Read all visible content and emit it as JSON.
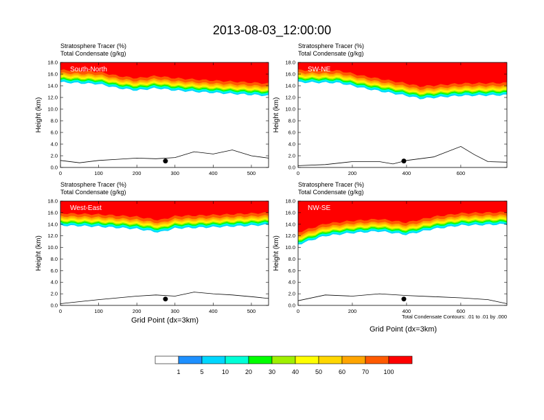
{
  "figure": {
    "title": "2013-08-03_12:00:00",
    "xlabel": "Grid Point (dx=3km)",
    "ylabel": "Height (km)",
    "contour_note": "Total Condensate Contours: .01 to .01 by .000"
  },
  "colorbar": {
    "colors": [
      "#ffffff",
      "#1e90ff",
      "#00d7ff",
      "#00ffd7",
      "#00ff00",
      "#a0f000",
      "#ffff00",
      "#ffd700",
      "#ffa500",
      "#ff5a00",
      "#ff0000"
    ],
    "labels": [
      "1",
      "5",
      "10",
      "20",
      "30",
      "40",
      "50",
      "60",
      "70",
      "100"
    ]
  },
  "chart_data": [
    {
      "type": "heatmap",
      "name": "South-North",
      "label1": "Stratosphere Tracer   (%)",
      "label2": "Total Condensate   (g/kg)",
      "xlim": [
        0,
        545
      ],
      "ylim": [
        0,
        18
      ],
      "xticks": [
        "0",
        "100",
        "200",
        "300",
        "400",
        "500"
      ],
      "xtick_values": [
        0,
        100,
        200,
        300,
        400,
        500
      ],
      "yticks": [
        "0.0",
        "2.0",
        "4.0",
        "6.0",
        "8.0",
        "10.0",
        "12.0",
        "14.0",
        "16.0",
        "18.0"
      ],
      "tropopause_km": [
        [
          0,
          14.6
        ],
        [
          100,
          14.3
        ],
        [
          150,
          13.6
        ],
        [
          200,
          13.2
        ],
        [
          250,
          13.6
        ],
        [
          300,
          13.2
        ],
        [
          400,
          12.8
        ],
        [
          545,
          12.3
        ]
      ],
      "terrain_km": [
        [
          0,
          1.2
        ],
        [
          50,
          0.8
        ],
        [
          100,
          1.2
        ],
        [
          150,
          1.4
        ],
        [
          200,
          1.6
        ],
        [
          250,
          1.5
        ],
        [
          300,
          1.7
        ],
        [
          350,
          2.7
        ],
        [
          400,
          2.3
        ],
        [
          450,
          3.0
        ],
        [
          500,
          2.0
        ],
        [
          545,
          1.6
        ]
      ],
      "marker": [
        275,
        1.1
      ]
    },
    {
      "type": "heatmap",
      "name": "SW-NE",
      "label1": "Stratosphere Tracer   (%)",
      "label2": "Total Condensate   (g/kg)",
      "xlim": [
        0,
        770
      ],
      "ylim": [
        0,
        18
      ],
      "xticks": [
        "0",
        "200",
        "400",
        "600"
      ],
      "xtick_values": [
        0,
        200,
        400,
        600
      ],
      "yticks": [
        "0.0",
        "2.0",
        "4.0",
        "6.0",
        "8.0",
        "10.0",
        "12.0",
        "14.0",
        "16.0",
        "18.0"
      ],
      "tropopause_km": [
        [
          0,
          14.6
        ],
        [
          150,
          14.5
        ],
        [
          250,
          13.5
        ],
        [
          400,
          12.3
        ],
        [
          450,
          11.8
        ],
        [
          600,
          12.3
        ],
        [
          770,
          12.4
        ]
      ],
      "terrain_km": [
        [
          0,
          0.3
        ],
        [
          100,
          0.5
        ],
        [
          200,
          1.0
        ],
        [
          300,
          1.0
        ],
        [
          350,
          0.6
        ],
        [
          400,
          1.2
        ],
        [
          500,
          1.8
        ],
        [
          600,
          3.6
        ],
        [
          650,
          2.2
        ],
        [
          700,
          1.0
        ],
        [
          770,
          0.9
        ]
      ],
      "marker": [
        390,
        1.1
      ]
    },
    {
      "type": "heatmap",
      "name": "West-East",
      "label1": "Stratosphere Tracer   (%)",
      "label2": "Total Condensate   (g/kg)",
      "xlim": [
        0,
        545
      ],
      "ylim": [
        0,
        18
      ],
      "xticks": [
        "0",
        "100",
        "200",
        "300",
        "400",
        "500"
      ],
      "xtick_values": [
        0,
        100,
        200,
        300,
        400,
        500
      ],
      "yticks": [
        "0.0",
        "2.0",
        "4.0",
        "6.0",
        "8.0",
        "10.0",
        "12.0",
        "14.0",
        "16.0",
        "18.0"
      ],
      "tropopause_km": [
        [
          0,
          13.8
        ],
        [
          100,
          13.6
        ],
        [
          200,
          13.2
        ],
        [
          260,
          12.6
        ],
        [
          300,
          13.3
        ],
        [
          400,
          13.5
        ],
        [
          545,
          13.9
        ]
      ],
      "terrain_km": [
        [
          0,
          0.3
        ],
        [
          100,
          1.0
        ],
        [
          200,
          1.6
        ],
        [
          250,
          1.8
        ],
        [
          300,
          1.6
        ],
        [
          350,
          2.3
        ],
        [
          400,
          2.0
        ],
        [
          450,
          1.8
        ],
        [
          500,
          1.5
        ],
        [
          545,
          1.2
        ]
      ],
      "marker": [
        275,
        1.1
      ]
    },
    {
      "type": "heatmap",
      "name": "NW-SE",
      "label1": "Stratosphere Tracer   (%)",
      "label2": "Total Condensate   (g/kg)",
      "xlim": [
        0,
        770
      ],
      "ylim": [
        0,
        18
      ],
      "xticks": [
        "0",
        "200",
        "400",
        "600"
      ],
      "xtick_values": [
        0,
        200,
        400,
        600
      ],
      "yticks": [
        "0.0",
        "2.0",
        "4.0",
        "6.0",
        "8.0",
        "10.0",
        "12.0",
        "14.0",
        "16.0",
        "18.0"
      ],
      "tropopause_km": [
        [
          0,
          10.5
        ],
        [
          100,
          12.0
        ],
        [
          200,
          12.5
        ],
        [
          300,
          12.8
        ],
        [
          400,
          12.2
        ],
        [
          500,
          13.2
        ],
        [
          600,
          13.8
        ],
        [
          770,
          14.0
        ]
      ],
      "terrain_km": [
        [
          0,
          0.8
        ],
        [
          100,
          1.8
        ],
        [
          200,
          1.6
        ],
        [
          300,
          2.0
        ],
        [
          400,
          1.7
        ],
        [
          500,
          1.5
        ],
        [
          600,
          1.3
        ],
        [
          700,
          1.0
        ],
        [
          770,
          0.3
        ]
      ],
      "marker": [
        390,
        1.1
      ]
    }
  ]
}
